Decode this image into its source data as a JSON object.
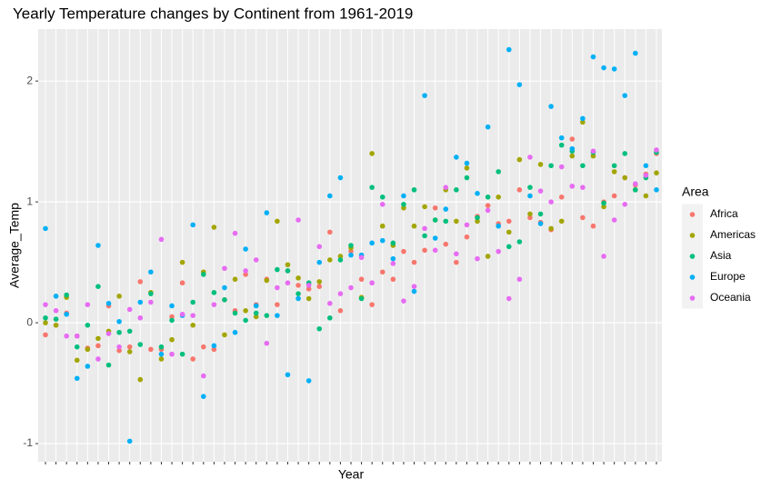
{
  "chart_data": {
    "type": "scatter",
    "title": "Yearly Temperature changes by Continent from 1961-2019",
    "x_label": "Year",
    "y_label": "Average_Temp",
    "legend_title": "Area",
    "legend_position": "right",
    "grid": true,
    "categories": [
      null,
      null,
      null,
      null,
      null,
      null,
      null,
      null,
      null,
      null,
      null,
      null,
      null,
      null,
      null,
      null,
      null,
      null,
      null,
      null,
      null,
      null,
      null,
      null,
      null,
      null,
      null,
      null,
      null,
      null,
      null,
      null,
      null,
      null,
      null,
      null,
      null,
      null,
      null,
      null,
      null,
      null,
      null,
      null,
      null,
      null,
      null,
      null,
      null,
      null,
      null,
      null,
      null,
      null,
      null,
      null,
      null,
      null,
      null
    ],
    "ylim": [
      -1.15,
      2.43
    ],
    "yticks": [
      -1,
      0,
      1,
      2
    ],
    "series": [
      {
        "name": "Africa",
        "color": "#F8766D",
        "values": [
          -0.1,
          -0.02,
          0.08,
          -0.11,
          -0.21,
          -0.19,
          0.14,
          -0.23,
          -0.2,
          0.34,
          -0.22,
          -0.22,
          0.05,
          0.33,
          -0.3,
          -0.2,
          -0.22,
          0.19,
          0.1,
          0.4,
          0.15,
          0.36,
          0.15,
          0.43,
          0.31,
          0.28,
          0.3,
          0.75,
          0.1,
          0.59,
          0.36,
          0.15,
          0.42,
          0.36,
          0.59,
          0.5,
          0.6,
          0.95,
          0.65,
          0.5,
          0.71,
          0.88,
          0.97,
          0.82,
          0.84,
          1.1,
          0.87,
          0.83,
          0.77,
          1.04,
          1.52,
          0.87,
          0.8,
          1.0,
          1.05,
          1.2,
          1.14,
          1.23,
          1.4
        ]
      },
      {
        "name": "Americas",
        "color": "#A3A500",
        "values": [
          0.0,
          -0.02,
          0.21,
          -0.31,
          -0.22,
          -0.13,
          -0.07,
          0.22,
          -0.24,
          -0.47,
          0.25,
          -0.3,
          -0.14,
          0.5,
          -0.02,
          0.42,
          0.79,
          -0.1,
          0.36,
          0.1,
          0.05,
          0.35,
          0.84,
          0.48,
          0.37,
          0.2,
          0.34,
          0.52,
          0.55,
          0.62,
          0.21,
          1.4,
          0.8,
          0.64,
          0.95,
          0.8,
          0.96,
          0.85,
          1.1,
          0.84,
          1.28,
          0.84,
          0.55,
          1.04,
          0.75,
          1.35,
          0.9,
          1.31,
          0.78,
          0.84,
          1.38,
          1.66,
          1.38,
          0.96,
          1.25,
          1.2,
          1.1,
          1.05,
          1.24
        ]
      },
      {
        "name": "Asia",
        "color": "#00BF7D",
        "values": [
          0.04,
          0.03,
          0.23,
          -0.2,
          -0.02,
          0.3,
          -0.35,
          -0.08,
          -0.07,
          -0.18,
          0.24,
          -0.2,
          0.02,
          -0.26,
          0.17,
          0.4,
          0.25,
          0.19,
          0.08,
          0.02,
          0.08,
          0.06,
          0.44,
          0.43,
          0.24,
          0.33,
          -0.05,
          0.04,
          0.52,
          0.64,
          0.2,
          1.12,
          1.04,
          0.66,
          0.98,
          1.1,
          0.72,
          0.85,
          0.84,
          1.1,
          1.2,
          0.87,
          1.04,
          1.25,
          0.63,
          0.67,
          1.12,
          0.9,
          1.3,
          1.47,
          1.42,
          1.3,
          1.41,
          0.99,
          1.3,
          1.4,
          1.1,
          1.2,
          1.41
        ]
      },
      {
        "name": "Europe",
        "color": "#00B0F6",
        "values": [
          0.78,
          0.22,
          0.07,
          -0.46,
          -0.36,
          0.64,
          0.16,
          0.01,
          -0.98,
          0.17,
          0.42,
          -0.26,
          0.14,
          0.06,
          0.81,
          -0.61,
          -0.19,
          0.29,
          -0.08,
          0.61,
          0.14,
          0.91,
          0.06,
          -0.43,
          0.2,
          -0.48,
          0.5,
          1.05,
          1.2,
          0.56,
          0.56,
          0.66,
          0.68,
          0.53,
          1.05,
          0.26,
          1.88,
          0.7,
          0.94,
          1.37,
          1.32,
          1.07,
          1.62,
          0.8,
          2.26,
          1.97,
          1.05,
          0.82,
          1.79,
          1.53,
          1.44,
          1.69,
          2.2,
          2.11,
          2.1,
          1.88,
          2.23,
          1.3,
          1.1
        ]
      },
      {
        "name": "Oceania",
        "color": "#E76BF3",
        "values": [
          0.15,
          0.1,
          -0.11,
          -0.11,
          0.15,
          -0.3,
          -0.09,
          -0.2,
          0.11,
          0.04,
          0.17,
          0.69,
          -0.26,
          0.07,
          0.06,
          -0.44,
          0.15,
          0.45,
          0.74,
          0.43,
          0.52,
          -0.17,
          0.29,
          0.33,
          0.85,
          0.31,
          0.63,
          0.16,
          0.24,
          0.29,
          0.54,
          0.33,
          0.98,
          0.49,
          0.18,
          0.3,
          0.78,
          0.6,
          1.12,
          0.57,
          0.81,
          0.53,
          0.93,
          0.59,
          0.2,
          0.36,
          1.37,
          1.09,
          1.0,
          1.29,
          1.13,
          1.12,
          1.42,
          0.55,
          0.85,
          0.98,
          1.15,
          1.22,
          1.43
        ]
      }
    ]
  }
}
